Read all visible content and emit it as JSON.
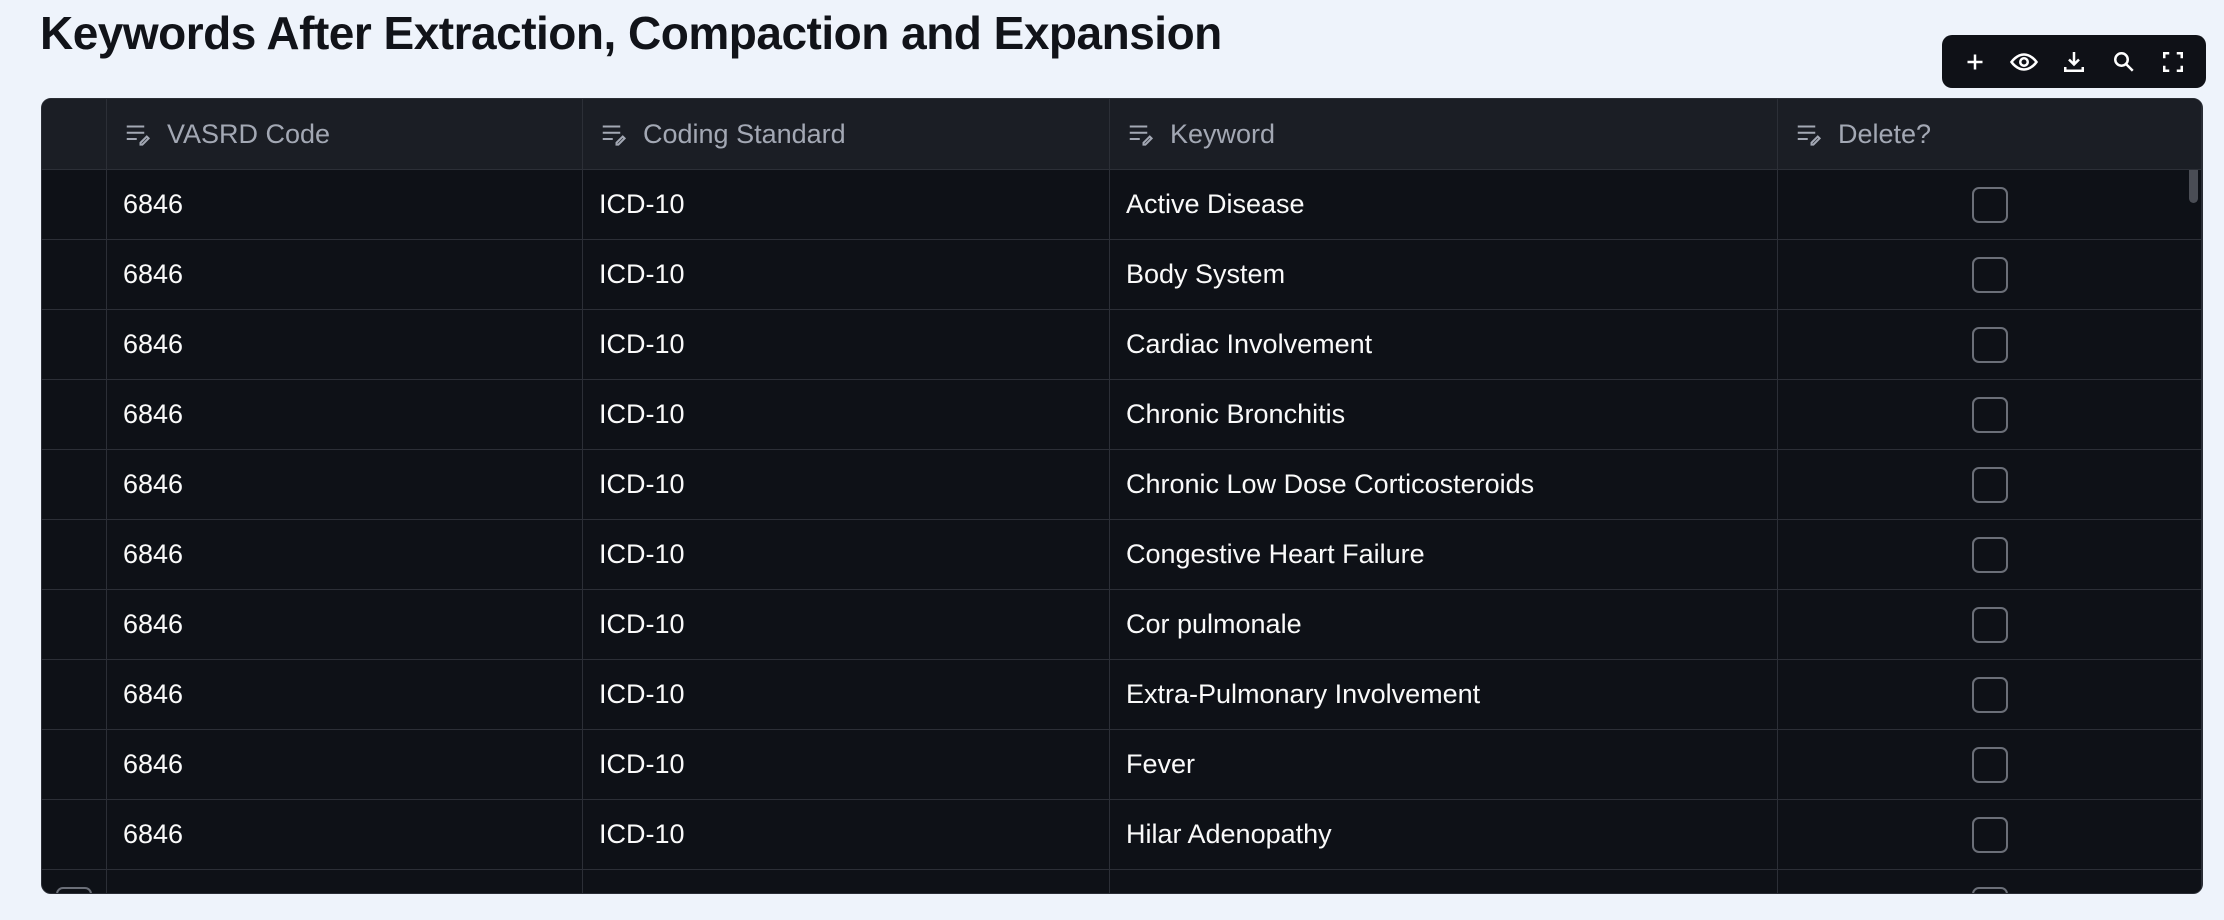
{
  "header": {
    "title": "Keywords After Extraction, Compaction and Expansion"
  },
  "table": {
    "columns": [
      "VASRD Code",
      "Coding Standard",
      "Keyword",
      "Delete?"
    ],
    "rows": [
      [
        "6846",
        "ICD-10",
        "Active Disease"
      ],
      [
        "6846",
        "ICD-10",
        "Body System"
      ],
      [
        "6846",
        "ICD-10",
        "Cardiac Involvement"
      ],
      [
        "6846",
        "ICD-10",
        "Chronic Bronchitis"
      ],
      [
        "6846",
        "ICD-10",
        "Chronic Low Dose Corticosteroids"
      ],
      [
        "6846",
        "ICD-10",
        "Congestive Heart Failure"
      ],
      [
        "6846",
        "ICD-10",
        "Cor pulmonale"
      ],
      [
        "6846",
        "ICD-10",
        "Extra-Pulmonary Involvement"
      ],
      [
        "6846",
        "ICD-10",
        "Fever"
      ],
      [
        "6846",
        "ICD-10",
        "Hilar Adenopathy"
      ]
    ]
  }
}
